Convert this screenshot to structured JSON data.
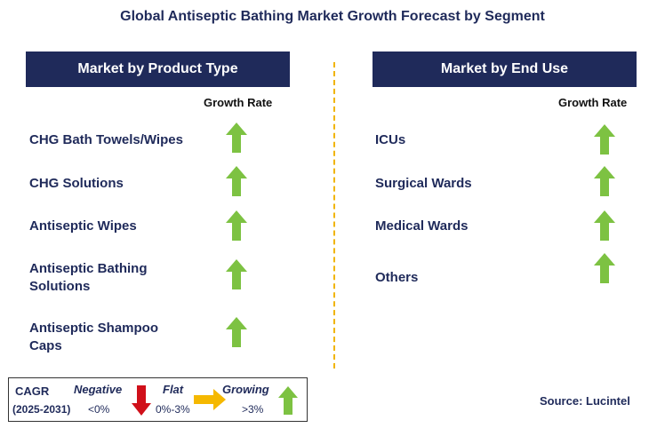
{
  "title": "Global Antiseptic Bathing Market Growth Forecast by Segment",
  "left_panel": {
    "header": "Market by Product Type",
    "growth_label": "Growth Rate",
    "rows": [
      {
        "label": "CHG Bath Towels/Wipes",
        "trend": "growing"
      },
      {
        "label": "CHG Solutions",
        "trend": "growing"
      },
      {
        "label": "Antiseptic Wipes",
        "trend": "growing"
      },
      {
        "label": "Antiseptic Bathing Solutions",
        "line1": "Antiseptic Bathing",
        "line2": "Solutions",
        "trend": "growing"
      },
      {
        "label": "Antiseptic Shampoo Caps",
        "line1": "Antiseptic Shampoo",
        "line2": "Caps",
        "trend": "growing"
      }
    ]
  },
  "right_panel": {
    "header": "Market by End Use",
    "growth_label": "Growth Rate",
    "rows": [
      {
        "label": "ICUs",
        "trend": "growing"
      },
      {
        "label": "Surgical Wards",
        "trend": "growing"
      },
      {
        "label": "Medical Wards",
        "trend": "growing"
      },
      {
        "label": "Others",
        "trend": "growing"
      }
    ]
  },
  "legend": {
    "cagr": "CAGR",
    "years": "(2025-2031)",
    "negative": {
      "label": "Negative",
      "range": "<0%",
      "icon": "down-arrow-icon",
      "color": "#d0101a"
    },
    "flat": {
      "label": "Flat",
      "range": "0%-3%",
      "icon": "right-arrow-icon",
      "color": "#f5b800"
    },
    "growing": {
      "label": "Growing",
      "range": ">3%",
      "icon": "up-arrow-icon",
      "color": "#7dc242"
    }
  },
  "source": "Source: Lucintel",
  "colors": {
    "navy": "#1f2a5a",
    "growth_green": "#7dc242",
    "divider": "#f0b400"
  }
}
